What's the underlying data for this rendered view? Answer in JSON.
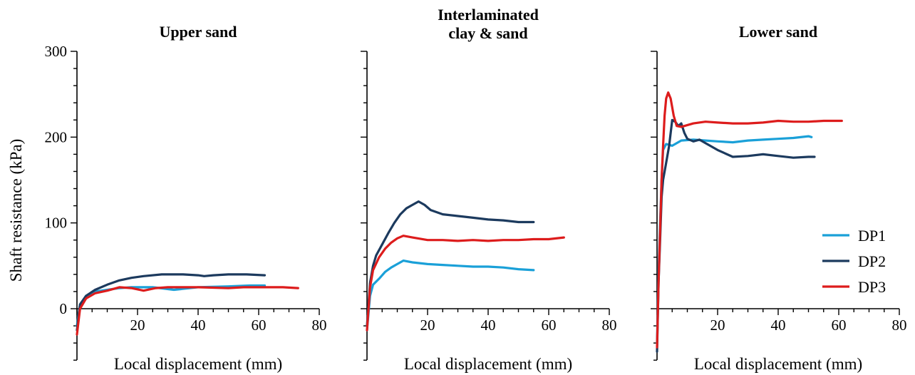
{
  "y_axis_label": "Shaft resistance  (kPa)",
  "colors": {
    "DP1": "#1aa0d8",
    "DP2": "#1c3a5e",
    "DP3": "#dd1c1c"
  },
  "legend": [
    "DP1",
    "DP2",
    "DP3"
  ],
  "legend_placement": "lower-right of third panel",
  "chart_data": [
    {
      "type": "line",
      "title": "Upper sand",
      "xlabel": "Local displacement (mm)",
      "ylabel": "Shaft resistance  (kPa)",
      "xlim": [
        0,
        80
      ],
      "ylim": [
        -60,
        300
      ],
      "xticks": [
        20,
        40,
        60,
        80
      ],
      "yticks": [
        0,
        100,
        200,
        300
      ],
      "series": [
        {
          "name": "DP1",
          "points": [
            [
              0,
              -20
            ],
            [
              1,
              5
            ],
            [
              3,
              15
            ],
            [
              6,
              20
            ],
            [
              10,
              22
            ],
            [
              14,
              24
            ],
            [
              18,
              25
            ],
            [
              25,
              25
            ],
            [
              32,
              22
            ],
            [
              40,
              25
            ],
            [
              50,
              26
            ],
            [
              57,
              27
            ],
            [
              62,
              27
            ]
          ]
        },
        {
          "name": "DP2",
          "points": [
            [
              0,
              -25
            ],
            [
              1,
              5
            ],
            [
              3,
              15
            ],
            [
              6,
              22
            ],
            [
              10,
              28
            ],
            [
              14,
              33
            ],
            [
              18,
              36
            ],
            [
              22,
              38
            ],
            [
              28,
              40
            ],
            [
              35,
              40
            ],
            [
              40,
              39
            ],
            [
              42,
              38
            ],
            [
              45,
              39
            ],
            [
              50,
              40
            ],
            [
              56,
              40
            ],
            [
              62,
              39
            ]
          ]
        },
        {
          "name": "DP3",
          "points": [
            [
              0,
              -30
            ],
            [
              1,
              0
            ],
            [
              3,
              12
            ],
            [
              6,
              18
            ],
            [
              10,
              21
            ],
            [
              14,
              25
            ],
            [
              18,
              24
            ],
            [
              22,
              21
            ],
            [
              26,
              24
            ],
            [
              30,
              25
            ],
            [
              40,
              25
            ],
            [
              50,
              24
            ],
            [
              55,
              25
            ],
            [
              62,
              25
            ],
            [
              68,
              25
            ],
            [
              73,
              24
            ]
          ]
        }
      ]
    },
    {
      "type": "line",
      "title": "Interlaminated clay & sand",
      "xlabel": "Local displacement (mm)",
      "ylabel": "",
      "xlim": [
        0,
        80
      ],
      "ylim": [
        -60,
        300
      ],
      "xticks": [
        20,
        40,
        60,
        80
      ],
      "yticks": [
        0,
        100,
        200,
        300
      ],
      "series": [
        {
          "name": "DP1",
          "points": [
            [
              0,
              -25
            ],
            [
              1,
              15
            ],
            [
              2,
              28
            ],
            [
              4,
              35
            ],
            [
              6,
              43
            ],
            [
              8,
              48
            ],
            [
              10,
              52
            ],
            [
              12,
              56
            ],
            [
              15,
              54
            ],
            [
              20,
              52
            ],
            [
              25,
              51
            ],
            [
              30,
              50
            ],
            [
              35,
              49
            ],
            [
              40,
              49
            ],
            [
              45,
              48
            ],
            [
              50,
              46
            ],
            [
              55,
              45
            ]
          ]
        },
        {
          "name": "DP2",
          "points": [
            [
              0,
              -20
            ],
            [
              1,
              30
            ],
            [
              2,
              50
            ],
            [
              3,
              62
            ],
            [
              5,
              75
            ],
            [
              7,
              88
            ],
            [
              9,
              100
            ],
            [
              11,
              110
            ],
            [
              13,
              117
            ],
            [
              15,
              121
            ],
            [
              17,
              125
            ],
            [
              19,
              121
            ],
            [
              21,
              115
            ],
            [
              25,
              110
            ],
            [
              30,
              108
            ],
            [
              35,
              106
            ],
            [
              40,
              104
            ],
            [
              45,
              103
            ],
            [
              50,
              101
            ],
            [
              55,
              101
            ]
          ]
        },
        {
          "name": "DP3",
          "points": [
            [
              0,
              -25
            ],
            [
              1,
              25
            ],
            [
              2,
              45
            ],
            [
              4,
              60
            ],
            [
              6,
              70
            ],
            [
              8,
              77
            ],
            [
              10,
              82
            ],
            [
              12,
              85
            ],
            [
              15,
              83
            ],
            [
              20,
              80
            ],
            [
              25,
              80
            ],
            [
              30,
              79
            ],
            [
              35,
              80
            ],
            [
              40,
              79
            ],
            [
              45,
              80
            ],
            [
              50,
              80
            ],
            [
              55,
              81
            ],
            [
              60,
              81
            ],
            [
              65,
              83
            ]
          ]
        }
      ]
    },
    {
      "type": "line",
      "title": "Lower sand",
      "xlabel": "Local displacement (mm)",
      "ylabel": "",
      "xlim": [
        0,
        80
      ],
      "ylim": [
        -60,
        300
      ],
      "xticks": [
        20,
        40,
        60,
        80
      ],
      "yticks": [
        0,
        100,
        200,
        300
      ],
      "series": [
        {
          "name": "DP1",
          "points": [
            [
              0,
              -40
            ],
            [
              0.5,
              40
            ],
            [
              1,
              100
            ],
            [
              1.5,
              150
            ],
            [
              2,
              185
            ],
            [
              3,
              192
            ],
            [
              5,
              190
            ],
            [
              8,
              196
            ],
            [
              12,
              197
            ],
            [
              16,
              196
            ],
            [
              20,
              195
            ],
            [
              25,
              194
            ],
            [
              30,
              196
            ],
            [
              35,
              197
            ],
            [
              40,
              198
            ],
            [
              45,
              199
            ],
            [
              50,
              201
            ],
            [
              51,
              200
            ]
          ]
        },
        {
          "name": "DP2",
          "points": [
            [
              0,
              -50
            ],
            [
              0.5,
              30
            ],
            [
              1,
              80
            ],
            [
              1.5,
              130
            ],
            [
              2,
              150
            ],
            [
              3,
              170
            ],
            [
              4,
              190
            ],
            [
              5,
              220
            ],
            [
              6,
              218
            ],
            [
              7,
              213
            ],
            [
              8,
              216
            ],
            [
              9,
              205
            ],
            [
              10,
              198
            ],
            [
              12,
              195
            ],
            [
              14,
              197
            ],
            [
              16,
              193
            ],
            [
              20,
              185
            ],
            [
              25,
              177
            ],
            [
              30,
              178
            ],
            [
              35,
              180
            ],
            [
              40,
              178
            ],
            [
              45,
              176
            ],
            [
              50,
              177
            ],
            [
              52,
              177
            ]
          ]
        },
        {
          "name": "DP3",
          "points": [
            [
              0,
              -45
            ],
            [
              0.5,
              30
            ],
            [
              1,
              90
            ],
            [
              1.5,
              150
            ],
            [
              2,
              190
            ],
            [
              2.5,
              225
            ],
            [
              3,
              245
            ],
            [
              3.7,
              252
            ],
            [
              4.5,
              245
            ],
            [
              5.5,
              225
            ],
            [
              6.5,
              213
            ],
            [
              8,
              212
            ],
            [
              12,
              216
            ],
            [
              16,
              218
            ],
            [
              20,
              217
            ],
            [
              25,
              216
            ],
            [
              30,
              216
            ],
            [
              35,
              217
            ],
            [
              40,
              219
            ],
            [
              45,
              218
            ],
            [
              50,
              218
            ],
            [
              55,
              219
            ],
            [
              61,
              219
            ]
          ]
        }
      ]
    }
  ]
}
